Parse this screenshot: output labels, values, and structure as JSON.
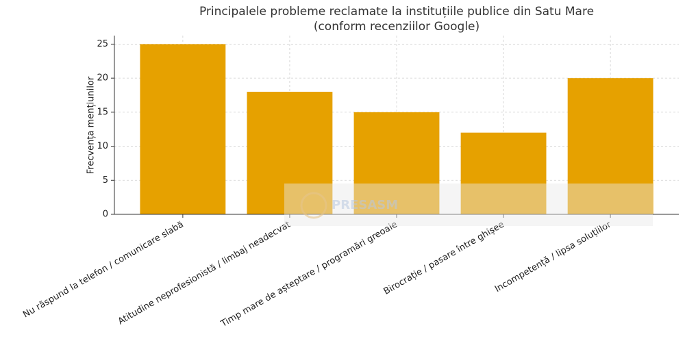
{
  "chart_data": {
    "type": "bar",
    "title": "Principalele probleme reclamate la instituțiile publice din Satu Mare",
    "subtitle": "(conform recenziilor Google)",
    "ylabel": "Frecvența mențiunilor",
    "categories": [
      "Nu răspund la telefon / comunicare slabă",
      "Atitudine neprofesionistă / limbaj neadecvat",
      "Timp mare de așteptare / programări greoaie",
      "Birocrație / pasare între ghișee",
      "Incompetență / lipsa soluțiilor"
    ],
    "values": [
      25,
      18,
      15,
      12,
      20
    ],
    "color": "#e6a100",
    "ylim": [
      0,
      26.25
    ],
    "yticks": [
      0,
      5,
      10,
      15,
      20,
      25
    ],
    "grid": true,
    "watermark": "PRESASM"
  }
}
